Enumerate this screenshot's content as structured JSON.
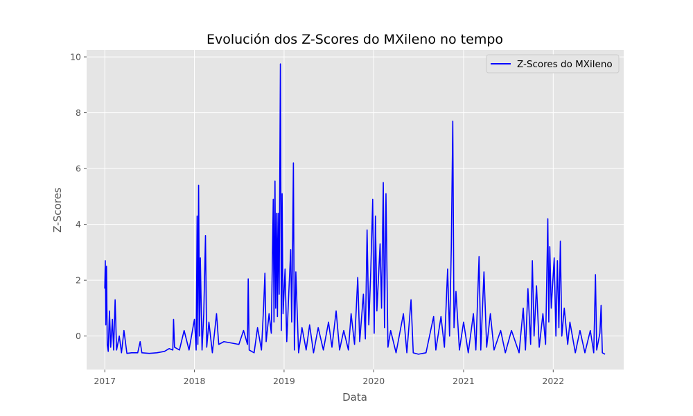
{
  "chart_data": {
    "type": "line",
    "title": "Evolución dos Z-Scores do MXileno no tempo",
    "xlabel": "Data",
    "ylabel": "Z-Scores",
    "xlim": [
      "2016-10-19",
      "2022-10-15"
    ],
    "ylim": [
      -1.2,
      10.25
    ],
    "x_ticks": [
      "2017",
      "2018",
      "2019",
      "2020",
      "2021",
      "2022"
    ],
    "y_ticks": [
      "0",
      "2",
      "4",
      "6",
      "8",
      "10"
    ],
    "grid": true,
    "legend_position": "top-right",
    "series": [
      {
        "name": "Z-Scores do MXileno",
        "color": "#0000ff",
        "points": [
          [
            "2017-01-01",
            1.7
          ],
          [
            "2017-01-03",
            2.7
          ],
          [
            "2017-01-05",
            0.4
          ],
          [
            "2017-01-08",
            2.5
          ],
          [
            "2017-01-11",
            -0.3
          ],
          [
            "2017-01-15",
            -0.55
          ],
          [
            "2017-01-20",
            0.9
          ],
          [
            "2017-01-25",
            -0.4
          ],
          [
            "2017-02-01",
            0.6
          ],
          [
            "2017-02-06",
            -0.5
          ],
          [
            "2017-02-12",
            1.3
          ],
          [
            "2017-02-18",
            -0.5
          ],
          [
            "2017-03-01",
            0.0
          ],
          [
            "2017-03-10",
            -0.6
          ],
          [
            "2017-03-20",
            0.2
          ],
          [
            "2017-04-01",
            -0.62
          ],
          [
            "2017-04-20",
            -0.6
          ],
          [
            "2017-05-15",
            -0.6
          ],
          [
            "2017-05-25",
            -0.2
          ],
          [
            "2017-06-01",
            -0.6
          ],
          [
            "2017-07-01",
            -0.62
          ],
          [
            "2017-08-01",
            -0.6
          ],
          [
            "2017-09-01",
            -0.55
          ],
          [
            "2017-09-20",
            -0.45
          ],
          [
            "2017-10-05",
            -0.5
          ],
          [
            "2017-10-08",
            0.6
          ],
          [
            "2017-10-12",
            -0.4
          ],
          [
            "2017-11-01",
            -0.5
          ],
          [
            "2017-11-20",
            0.2
          ],
          [
            "2017-12-10",
            -0.5
          ],
          [
            "2018-01-01",
            0.6
          ],
          [
            "2018-01-08",
            -0.5
          ],
          [
            "2018-01-12",
            4.3
          ],
          [
            "2018-01-15",
            -0.3
          ],
          [
            "2018-01-18",
            5.4
          ],
          [
            "2018-01-22",
            0.0
          ],
          [
            "2018-01-25",
            2.8
          ],
          [
            "2018-02-01",
            -0.5
          ],
          [
            "2018-02-08",
            0.8
          ],
          [
            "2018-02-15",
            3.6
          ],
          [
            "2018-02-20",
            -0.4
          ],
          [
            "2018-03-01",
            0.5
          ],
          [
            "2018-03-15",
            -0.6
          ],
          [
            "2018-04-01",
            0.8
          ],
          [
            "2018-04-10",
            -0.3
          ],
          [
            "2018-05-01",
            -0.2
          ],
          [
            "2018-06-01",
            -0.25
          ],
          [
            "2018-07-01",
            -0.3
          ],
          [
            "2018-07-20",
            0.2
          ],
          [
            "2018-08-05",
            -0.3
          ],
          [
            "2018-08-08",
            2.05
          ],
          [
            "2018-08-12",
            -0.5
          ],
          [
            "2018-09-01",
            -0.6
          ],
          [
            "2018-09-15",
            0.3
          ],
          [
            "2018-10-01",
            -0.5
          ],
          [
            "2018-10-10",
            1.1
          ],
          [
            "2018-10-15",
            2.25
          ],
          [
            "2018-10-20",
            -0.2
          ],
          [
            "2018-11-01",
            0.8
          ],
          [
            "2018-11-10",
            0.1
          ],
          [
            "2018-11-18",
            4.9
          ],
          [
            "2018-11-21",
            0.5
          ],
          [
            "2018-11-25",
            5.55
          ],
          [
            "2018-11-28",
            1.0
          ],
          [
            "2018-12-02",
            4.4
          ],
          [
            "2018-12-05",
            0.7
          ],
          [
            "2018-12-08",
            4.4
          ],
          [
            "2018-12-12",
            1.5
          ],
          [
            "2018-12-17",
            9.75
          ],
          [
            "2018-12-21",
            0.2
          ],
          [
            "2018-12-24",
            5.1
          ],
          [
            "2018-12-28",
            0.8
          ],
          [
            "2019-01-05",
            2.4
          ],
          [
            "2019-01-12",
            -0.2
          ],
          [
            "2019-01-20",
            1.5
          ],
          [
            "2019-01-28",
            3.1
          ],
          [
            "2019-02-01",
            0.5
          ],
          [
            "2019-02-05",
            3.4
          ],
          [
            "2019-02-08",
            6.2
          ],
          [
            "2019-02-12",
            -0.5
          ],
          [
            "2019-02-18",
            2.3
          ],
          [
            "2019-03-01",
            -0.6
          ],
          [
            "2019-03-15",
            0.3
          ],
          [
            "2019-04-01",
            -0.5
          ],
          [
            "2019-04-15",
            0.4
          ],
          [
            "2019-05-01",
            -0.6
          ],
          [
            "2019-05-20",
            0.3
          ],
          [
            "2019-06-10",
            -0.5
          ],
          [
            "2019-07-01",
            0.5
          ],
          [
            "2019-07-15",
            -0.4
          ],
          [
            "2019-08-01",
            0.9
          ],
          [
            "2019-08-15",
            -0.5
          ],
          [
            "2019-09-01",
            0.2
          ],
          [
            "2019-09-20",
            -0.5
          ],
          [
            "2019-10-01",
            0.8
          ],
          [
            "2019-10-15",
            -0.3
          ],
          [
            "2019-10-28",
            2.1
          ],
          [
            "2019-11-05",
            -0.2
          ],
          [
            "2019-11-20",
            1.5
          ],
          [
            "2019-11-28",
            -0.1
          ],
          [
            "2019-12-05",
            3.8
          ],
          [
            "2019-12-12",
            0.4
          ],
          [
            "2019-12-20",
            2.3
          ],
          [
            "2019-12-28",
            4.9
          ],
          [
            "2020-01-03",
            0.1
          ],
          [
            "2020-01-08",
            4.3
          ],
          [
            "2020-01-14",
            0.9
          ],
          [
            "2020-01-20",
            2.0
          ],
          [
            "2020-01-27",
            3.3
          ],
          [
            "2020-02-02",
            1.0
          ],
          [
            "2020-02-09",
            5.5
          ],
          [
            "2020-02-14",
            0.3
          ],
          [
            "2020-02-20",
            5.1
          ],
          [
            "2020-02-28",
            -0.4
          ],
          [
            "2020-03-10",
            0.2
          ],
          [
            "2020-04-01",
            -0.6
          ],
          [
            "2020-05-01",
            0.8
          ],
          [
            "2020-05-15",
            -0.6
          ],
          [
            "2020-06-01",
            1.3
          ],
          [
            "2020-06-10",
            -0.6
          ],
          [
            "2020-07-01",
            -0.65
          ],
          [
            "2020-08-01",
            -0.6
          ],
          [
            "2020-09-01",
            0.7
          ],
          [
            "2020-09-10",
            -0.5
          ],
          [
            "2020-10-01",
            0.7
          ],
          [
            "2020-10-15",
            -0.4
          ],
          [
            "2020-10-28",
            2.4
          ],
          [
            "2020-11-05",
            0.0
          ],
          [
            "2020-11-12",
            3.2
          ],
          [
            "2020-11-18",
            7.7
          ],
          [
            "2020-11-23",
            0.3
          ],
          [
            "2020-12-01",
            1.6
          ],
          [
            "2020-12-15",
            -0.5
          ],
          [
            "2021-01-01",
            0.5
          ],
          [
            "2021-01-20",
            -0.6
          ],
          [
            "2021-02-10",
            0.8
          ],
          [
            "2021-02-20",
            -0.5
          ],
          [
            "2021-03-05",
            2.85
          ],
          [
            "2021-03-12",
            -0.5
          ],
          [
            "2021-03-25",
            2.3
          ],
          [
            "2021-04-05",
            -0.4
          ],
          [
            "2021-04-20",
            0.8
          ],
          [
            "2021-05-05",
            -0.5
          ],
          [
            "2021-06-01",
            0.2
          ],
          [
            "2021-06-20",
            -0.6
          ],
          [
            "2021-07-15",
            0.2
          ],
          [
            "2021-08-15",
            -0.6
          ],
          [
            "2021-09-01",
            1.0
          ],
          [
            "2021-09-10",
            -0.5
          ],
          [
            "2021-09-20",
            1.7
          ],
          [
            "2021-10-01",
            -0.3
          ],
          [
            "2021-10-08",
            2.7
          ],
          [
            "2021-10-15",
            0.0
          ],
          [
            "2021-10-25",
            1.8
          ],
          [
            "2021-11-05",
            -0.4
          ],
          [
            "2021-11-20",
            0.8
          ],
          [
            "2021-12-01",
            -0.3
          ],
          [
            "2021-12-10",
            4.2
          ],
          [
            "2021-12-14",
            0.5
          ],
          [
            "2021-12-18",
            3.2
          ],
          [
            "2021-12-24",
            1.0
          ],
          [
            "2022-01-05",
            2.8
          ],
          [
            "2022-01-12",
            0.0
          ],
          [
            "2022-01-18",
            2.7
          ],
          [
            "2022-01-24",
            0.3
          ],
          [
            "2022-01-30",
            3.4
          ],
          [
            "2022-02-05",
            0.0
          ],
          [
            "2022-02-15",
            1.0
          ],
          [
            "2022-03-01",
            -0.3
          ],
          [
            "2022-03-10",
            0.5
          ],
          [
            "2022-04-01",
            -0.6
          ],
          [
            "2022-04-20",
            0.2
          ],
          [
            "2022-05-10",
            -0.6
          ],
          [
            "2022-06-01",
            0.2
          ],
          [
            "2022-06-15",
            -0.6
          ],
          [
            "2022-06-22",
            2.2
          ],
          [
            "2022-06-27",
            -0.5
          ],
          [
            "2022-07-10",
            0.1
          ],
          [
            "2022-07-15",
            1.1
          ],
          [
            "2022-07-20",
            -0.6
          ],
          [
            "2022-07-31",
            -0.65
          ]
        ]
      }
    ]
  }
}
